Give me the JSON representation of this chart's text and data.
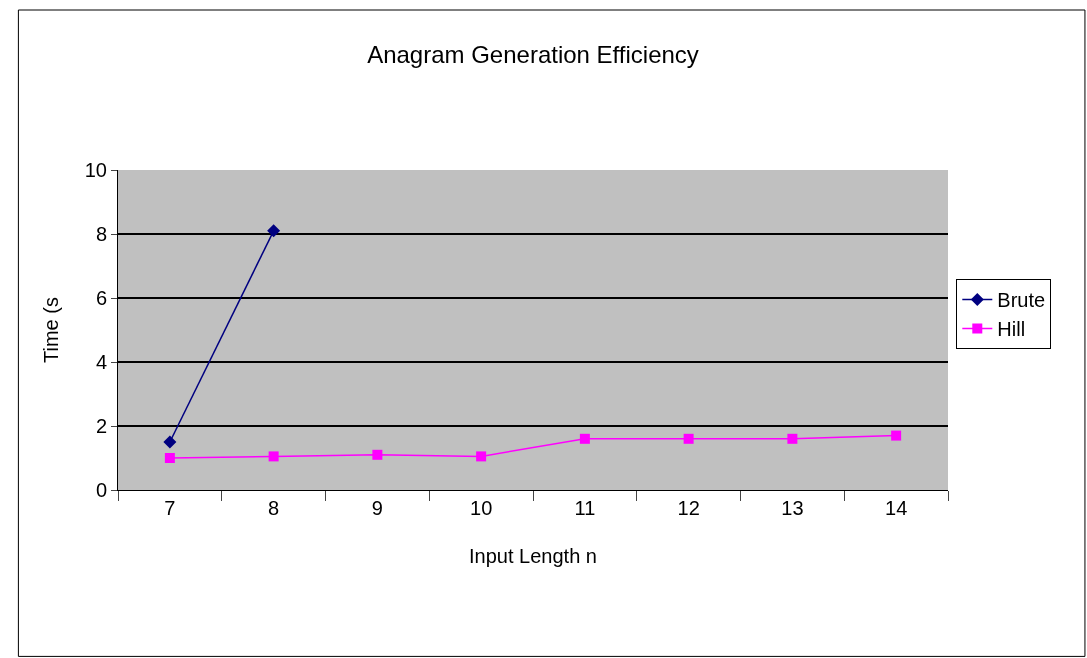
{
  "chart_data": {
    "type": "line",
    "title": "Anagram Generation Efficiency",
    "xlabel": "Input Length n",
    "ylabel": "Time (s",
    "categories": [
      "7",
      "8",
      "9",
      "10",
      "11",
      "12",
      "13",
      "14"
    ],
    "series": [
      {
        "name": "Brute",
        "color": "#000080",
        "marker": "diamond",
        "values": [
          1.5,
          8.1,
          null,
          null,
          null,
          null,
          null,
          null
        ]
      },
      {
        "name": "Hill",
        "color": "#ff00ff",
        "marker": "square",
        "values": [
          1.0,
          1.05,
          1.1,
          1.05,
          1.6,
          1.6,
          1.6,
          1.7
        ]
      }
    ],
    "ylim": [
      0,
      10
    ],
    "yticks": [
      0,
      2,
      4,
      6,
      8,
      10
    ],
    "grid": "y",
    "legend": "right",
    "line_style": "solid"
  }
}
